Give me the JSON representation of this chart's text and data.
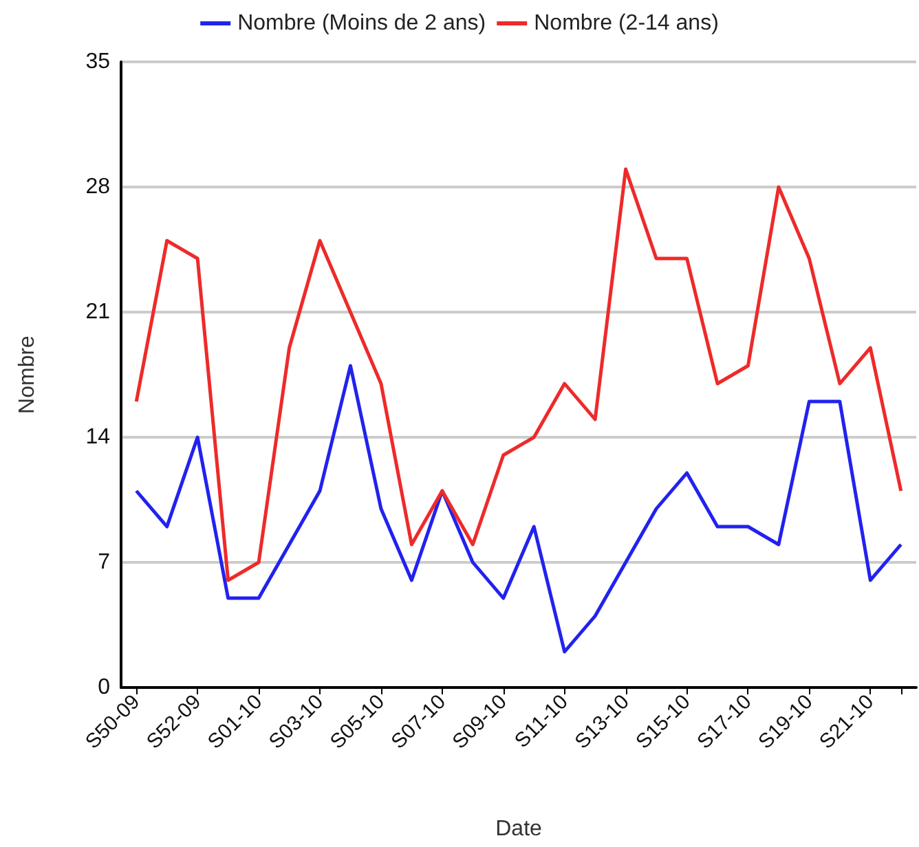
{
  "chart_data": {
    "type": "line",
    "xlabel": "Date",
    "ylabel": "Nombre",
    "categories": [
      "S50-09",
      null,
      "S52-09",
      null,
      "S01-10",
      null,
      "S03-10",
      null,
      "S05-10",
      null,
      "S07-10",
      null,
      "S09-10",
      null,
      "S11-10",
      null,
      "S13-10",
      null,
      "S15-10",
      null,
      "S17-10",
      null,
      "S19-10",
      null,
      "S21-10",
      null
    ],
    "series": [
      {
        "name": "Nombre (Moins de 2 ans)",
        "color": "#2222ee",
        "values": [
          11,
          9,
          14,
          5,
          5,
          8,
          11,
          18,
          10,
          6,
          11,
          7,
          5,
          9,
          2,
          4,
          7,
          10,
          12,
          9,
          9,
          8,
          16,
          16,
          6,
          8
        ]
      },
      {
        "name": "Nombre (2-14 ans)",
        "color": "#ee2a2a",
        "values": [
          16,
          25,
          24,
          6,
          7,
          19,
          25,
          21,
          17,
          8,
          11,
          8,
          13,
          14,
          17,
          15,
          29,
          24,
          24,
          17,
          18,
          28,
          24,
          17,
          19,
          11
        ]
      }
    ],
    "ylim": [
      0,
      35
    ],
    "yticks": [
      0,
      7,
      14,
      21,
      28,
      35
    ],
    "grid": "y",
    "legend": "top",
    "marker": "none",
    "line_style": "solid"
  }
}
